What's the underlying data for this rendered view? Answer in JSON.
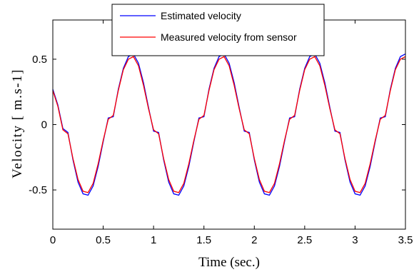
{
  "chart_data": {
    "type": "line",
    "title": "",
    "xlabel": "Time (sec.)",
    "ylabel": "Velocity [ m.s-1]",
    "xlim": [
      0,
      3.5
    ],
    "ylim": [
      -0.8,
      0.8
    ],
    "xticks": [
      0,
      0.5,
      1,
      1.5,
      2,
      2.5,
      3,
      3.5
    ],
    "xtick_labels": [
      "0",
      "0.5",
      "1",
      "1.5",
      "2",
      "2.5",
      "3",
      "3.5"
    ],
    "yticks": [
      -0.5,
      0,
      0.5
    ],
    "ytick_labels": [
      "-0.5",
      "0",
      "0.5"
    ],
    "grid": false,
    "legend_position": "top-center",
    "series": [
      {
        "name": "Estimated velocity",
        "color": "#0000ff",
        "x": [
          0,
          0.05,
          0.1,
          0.15,
          0.2,
          0.25,
          0.3,
          0.35,
          0.4,
          0.45,
          0.5,
          0.55,
          0.6,
          0.65,
          0.7,
          0.75,
          0.8,
          0.85,
          0.9,
          0.95,
          1.0,
          1.05,
          1.1,
          1.15,
          1.2,
          1.25,
          1.3,
          1.35,
          1.4,
          1.45,
          1.5,
          1.55,
          1.6,
          1.65,
          1.7,
          1.75,
          1.8,
          1.85,
          1.9,
          1.95,
          2.0,
          2.05,
          2.1,
          2.15,
          2.2,
          2.25,
          2.3,
          2.35,
          2.4,
          2.45,
          2.5,
          2.55,
          2.6,
          2.65,
          2.7,
          2.75,
          2.8,
          2.85,
          2.9,
          2.95,
          3.0,
          3.05,
          3.1,
          3.15,
          3.2,
          3.25,
          3.3,
          3.35,
          3.4,
          3.45,
          3.5
        ],
        "y": [
          0.27,
          0.15,
          -0.03,
          -0.06,
          -0.27,
          -0.44,
          -0.53,
          -0.54,
          -0.47,
          -0.32,
          -0.13,
          0.05,
          0.06,
          0.27,
          0.43,
          0.52,
          0.54,
          0.47,
          0.32,
          0.13,
          -0.05,
          -0.06,
          -0.27,
          -0.44,
          -0.53,
          -0.54,
          -0.47,
          -0.32,
          -0.13,
          0.05,
          0.06,
          0.27,
          0.43,
          0.52,
          0.54,
          0.47,
          0.32,
          0.13,
          -0.05,
          -0.06,
          -0.27,
          -0.44,
          -0.53,
          -0.54,
          -0.47,
          -0.32,
          -0.13,
          0.05,
          0.06,
          0.27,
          0.43,
          0.52,
          0.54,
          0.47,
          0.32,
          0.13,
          -0.05,
          -0.06,
          -0.27,
          -0.44,
          -0.53,
          -0.54,
          -0.47,
          -0.32,
          -0.13,
          0.05,
          0.06,
          0.27,
          0.43,
          0.52,
          0.54
        ]
      },
      {
        "name": "Measured velocity from sensor",
        "color": "#ff0000",
        "x": [
          0,
          0.05,
          0.1,
          0.15,
          0.2,
          0.25,
          0.3,
          0.35,
          0.4,
          0.45,
          0.5,
          0.55,
          0.6,
          0.65,
          0.7,
          0.75,
          0.8,
          0.85,
          0.9,
          0.95,
          1.0,
          1.05,
          1.1,
          1.15,
          1.2,
          1.25,
          1.3,
          1.35,
          1.4,
          1.45,
          1.5,
          1.55,
          1.6,
          1.65,
          1.7,
          1.75,
          1.8,
          1.85,
          1.9,
          1.95,
          2.0,
          2.05,
          2.1,
          2.15,
          2.2,
          2.25,
          2.3,
          2.35,
          2.4,
          2.45,
          2.5,
          2.55,
          2.6,
          2.65,
          2.7,
          2.75,
          2.8,
          2.85,
          2.9,
          2.95,
          3.0,
          3.05,
          3.1,
          3.15,
          3.2,
          3.25,
          3.3,
          3.35,
          3.4,
          3.45,
          3.5
        ],
        "y": [
          0.26,
          0.14,
          -0.04,
          -0.07,
          -0.26,
          -0.42,
          -0.51,
          -0.52,
          -0.45,
          -0.3,
          -0.12,
          0.04,
          0.07,
          0.26,
          0.42,
          0.5,
          0.52,
          0.45,
          0.3,
          0.12,
          -0.04,
          -0.07,
          -0.26,
          -0.42,
          -0.51,
          -0.52,
          -0.45,
          -0.3,
          -0.12,
          0.04,
          0.07,
          0.26,
          0.42,
          0.5,
          0.52,
          0.45,
          0.3,
          0.12,
          -0.04,
          -0.07,
          -0.26,
          -0.42,
          -0.51,
          -0.52,
          -0.45,
          -0.3,
          -0.12,
          0.04,
          0.07,
          0.26,
          0.42,
          0.5,
          0.52,
          0.45,
          0.3,
          0.12,
          -0.04,
          -0.07,
          -0.26,
          -0.42,
          -0.51,
          -0.52,
          -0.45,
          -0.3,
          -0.12,
          0.04,
          0.07,
          0.26,
          0.42,
          0.5,
          0.52
        ]
      }
    ]
  }
}
